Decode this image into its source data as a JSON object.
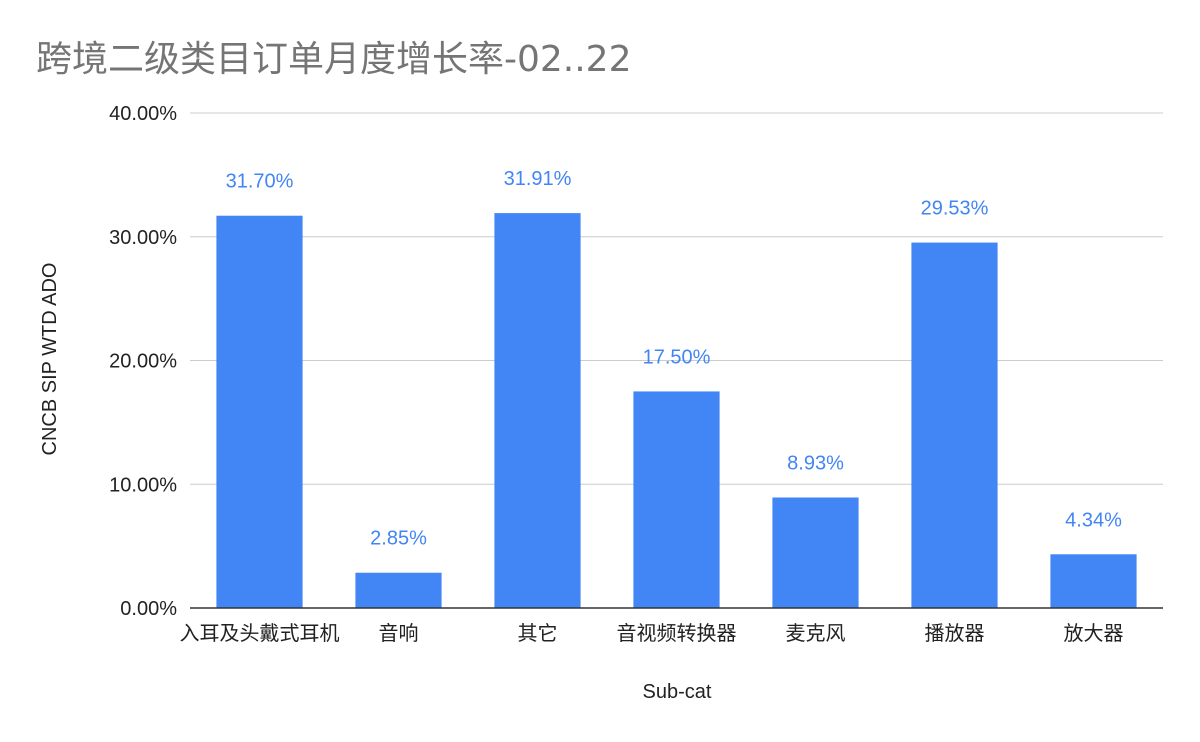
{
  "chart_data": {
    "type": "bar",
    "title": "跨境二级类目订单月度增长率-02..22",
    "xlabel": "Sub-cat",
    "ylabel": "CNCB SIP WTD ADO",
    "categories": [
      "入耳及头戴式耳机",
      "音响",
      "其它",
      "音视频转换器",
      "麦克风",
      "播放器",
      "放大器"
    ],
    "values": [
      31.7,
      2.85,
      31.91,
      17.5,
      8.93,
      29.53,
      4.34
    ],
    "data_labels": [
      "31.70%",
      "2.85%",
      "31.91%",
      "17.50%",
      "8.93%",
      "29.53%",
      "4.34%"
    ],
    "ylim": [
      0,
      40
    ],
    "yticks": [
      0,
      10,
      20,
      30,
      40
    ],
    "ytick_labels": [
      "0.00%",
      "10.00%",
      "20.00%",
      "30.00%",
      "40.00%"
    ],
    "grid": true,
    "legend": "none",
    "colors": {
      "bar": "#4285f4",
      "data_label": "#4285f4",
      "grid": "#cccccc",
      "axis": "#333333",
      "title": "#757575"
    }
  }
}
